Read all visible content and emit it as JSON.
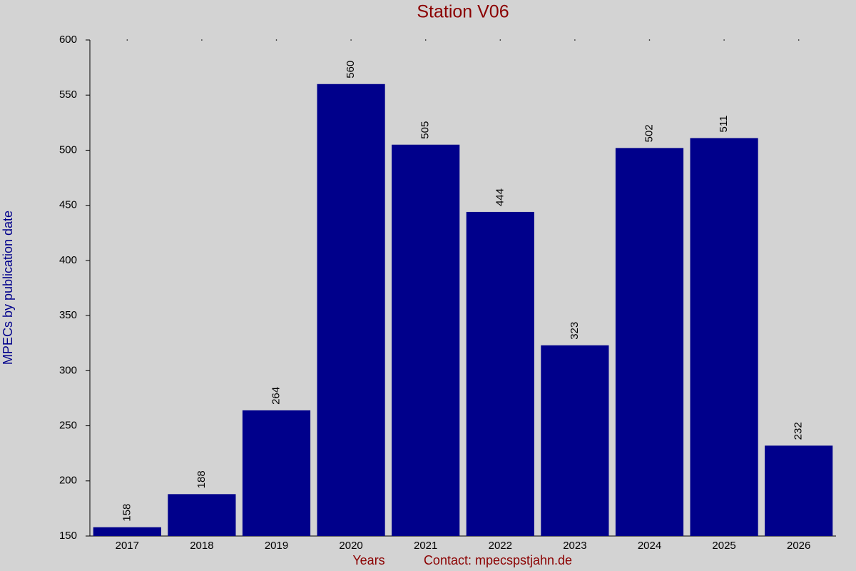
{
  "chart_data": {
    "type": "bar",
    "title": "Station V06",
    "ylabel": "MPECs by publication date",
    "xlabel": "Years",
    "annotation": "Contact: mpecspstjahn.de",
    "categories": [
      "2017",
      "2018",
      "2019",
      "2020",
      "2021",
      "2022",
      "2023",
      "2024",
      "2025",
      "2026"
    ],
    "values": [
      158,
      188,
      264,
      560,
      505,
      444,
      323,
      502,
      511,
      232
    ],
    "color": "#00008b",
    "ylim": [
      150,
      600
    ],
    "yticks": [
      150,
      200,
      250,
      300,
      350,
      400,
      450,
      500,
      550,
      600
    ],
    "grid": false
  }
}
